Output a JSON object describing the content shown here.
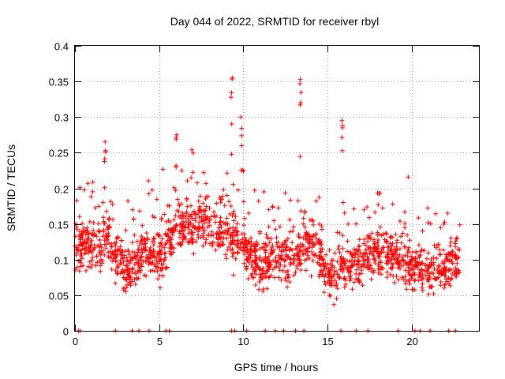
{
  "chart_data": {
    "type": "scatter",
    "title": "Day 044 of 2022, SRMTID for receiver rbyl",
    "xlabel": "GPS time / hours",
    "ylabel": "SRMTID / TECUs",
    "xlim": [
      0,
      24
    ],
    "ylim": [
      0,
      0.4
    ],
    "xticks": [
      0,
      5,
      10,
      15,
      20
    ],
    "xtick_labels": [
      "0",
      "5",
      "10",
      "15",
      "20"
    ],
    "yticks": [
      0,
      0.05,
      0.1,
      0.15,
      0.2,
      0.25,
      0.3,
      0.35,
      0.4
    ],
    "ytick_labels": [
      "0",
      "0.05",
      "0.1",
      "0.15",
      "0.2",
      "0.25",
      "0.3",
      "0.35",
      "0.4"
    ],
    "grid": true,
    "marker": "plus",
    "color": "#ff0000",
    "x_range": [
      0,
      22.9
    ],
    "y_range_typical": [
      0.03,
      0.28
    ],
    "peak_values": [
      {
        "x": 9.3,
        "y": 0.355
      },
      {
        "x": 13.4,
        "y": 0.353
      },
      {
        "x": 9.9,
        "y": 0.3
      },
      {
        "x": 15.9,
        "y": 0.295
      },
      {
        "x": 6.0,
        "y": 0.275
      },
      {
        "x": 1.8,
        "y": 0.265
      }
    ],
    "zero_values_x": [
      0.2,
      0.3,
      2.4,
      3.4,
      3.8,
      4.4,
      5.4,
      5.6,
      9.3,
      9.5,
      10.2,
      11.3,
      11.9,
      12.4,
      13.1,
      13.6,
      15.8,
      16.7,
      17.4,
      19.2,
      20.2,
      20.5,
      21.1,
      22.2,
      22.6
    ]
  }
}
